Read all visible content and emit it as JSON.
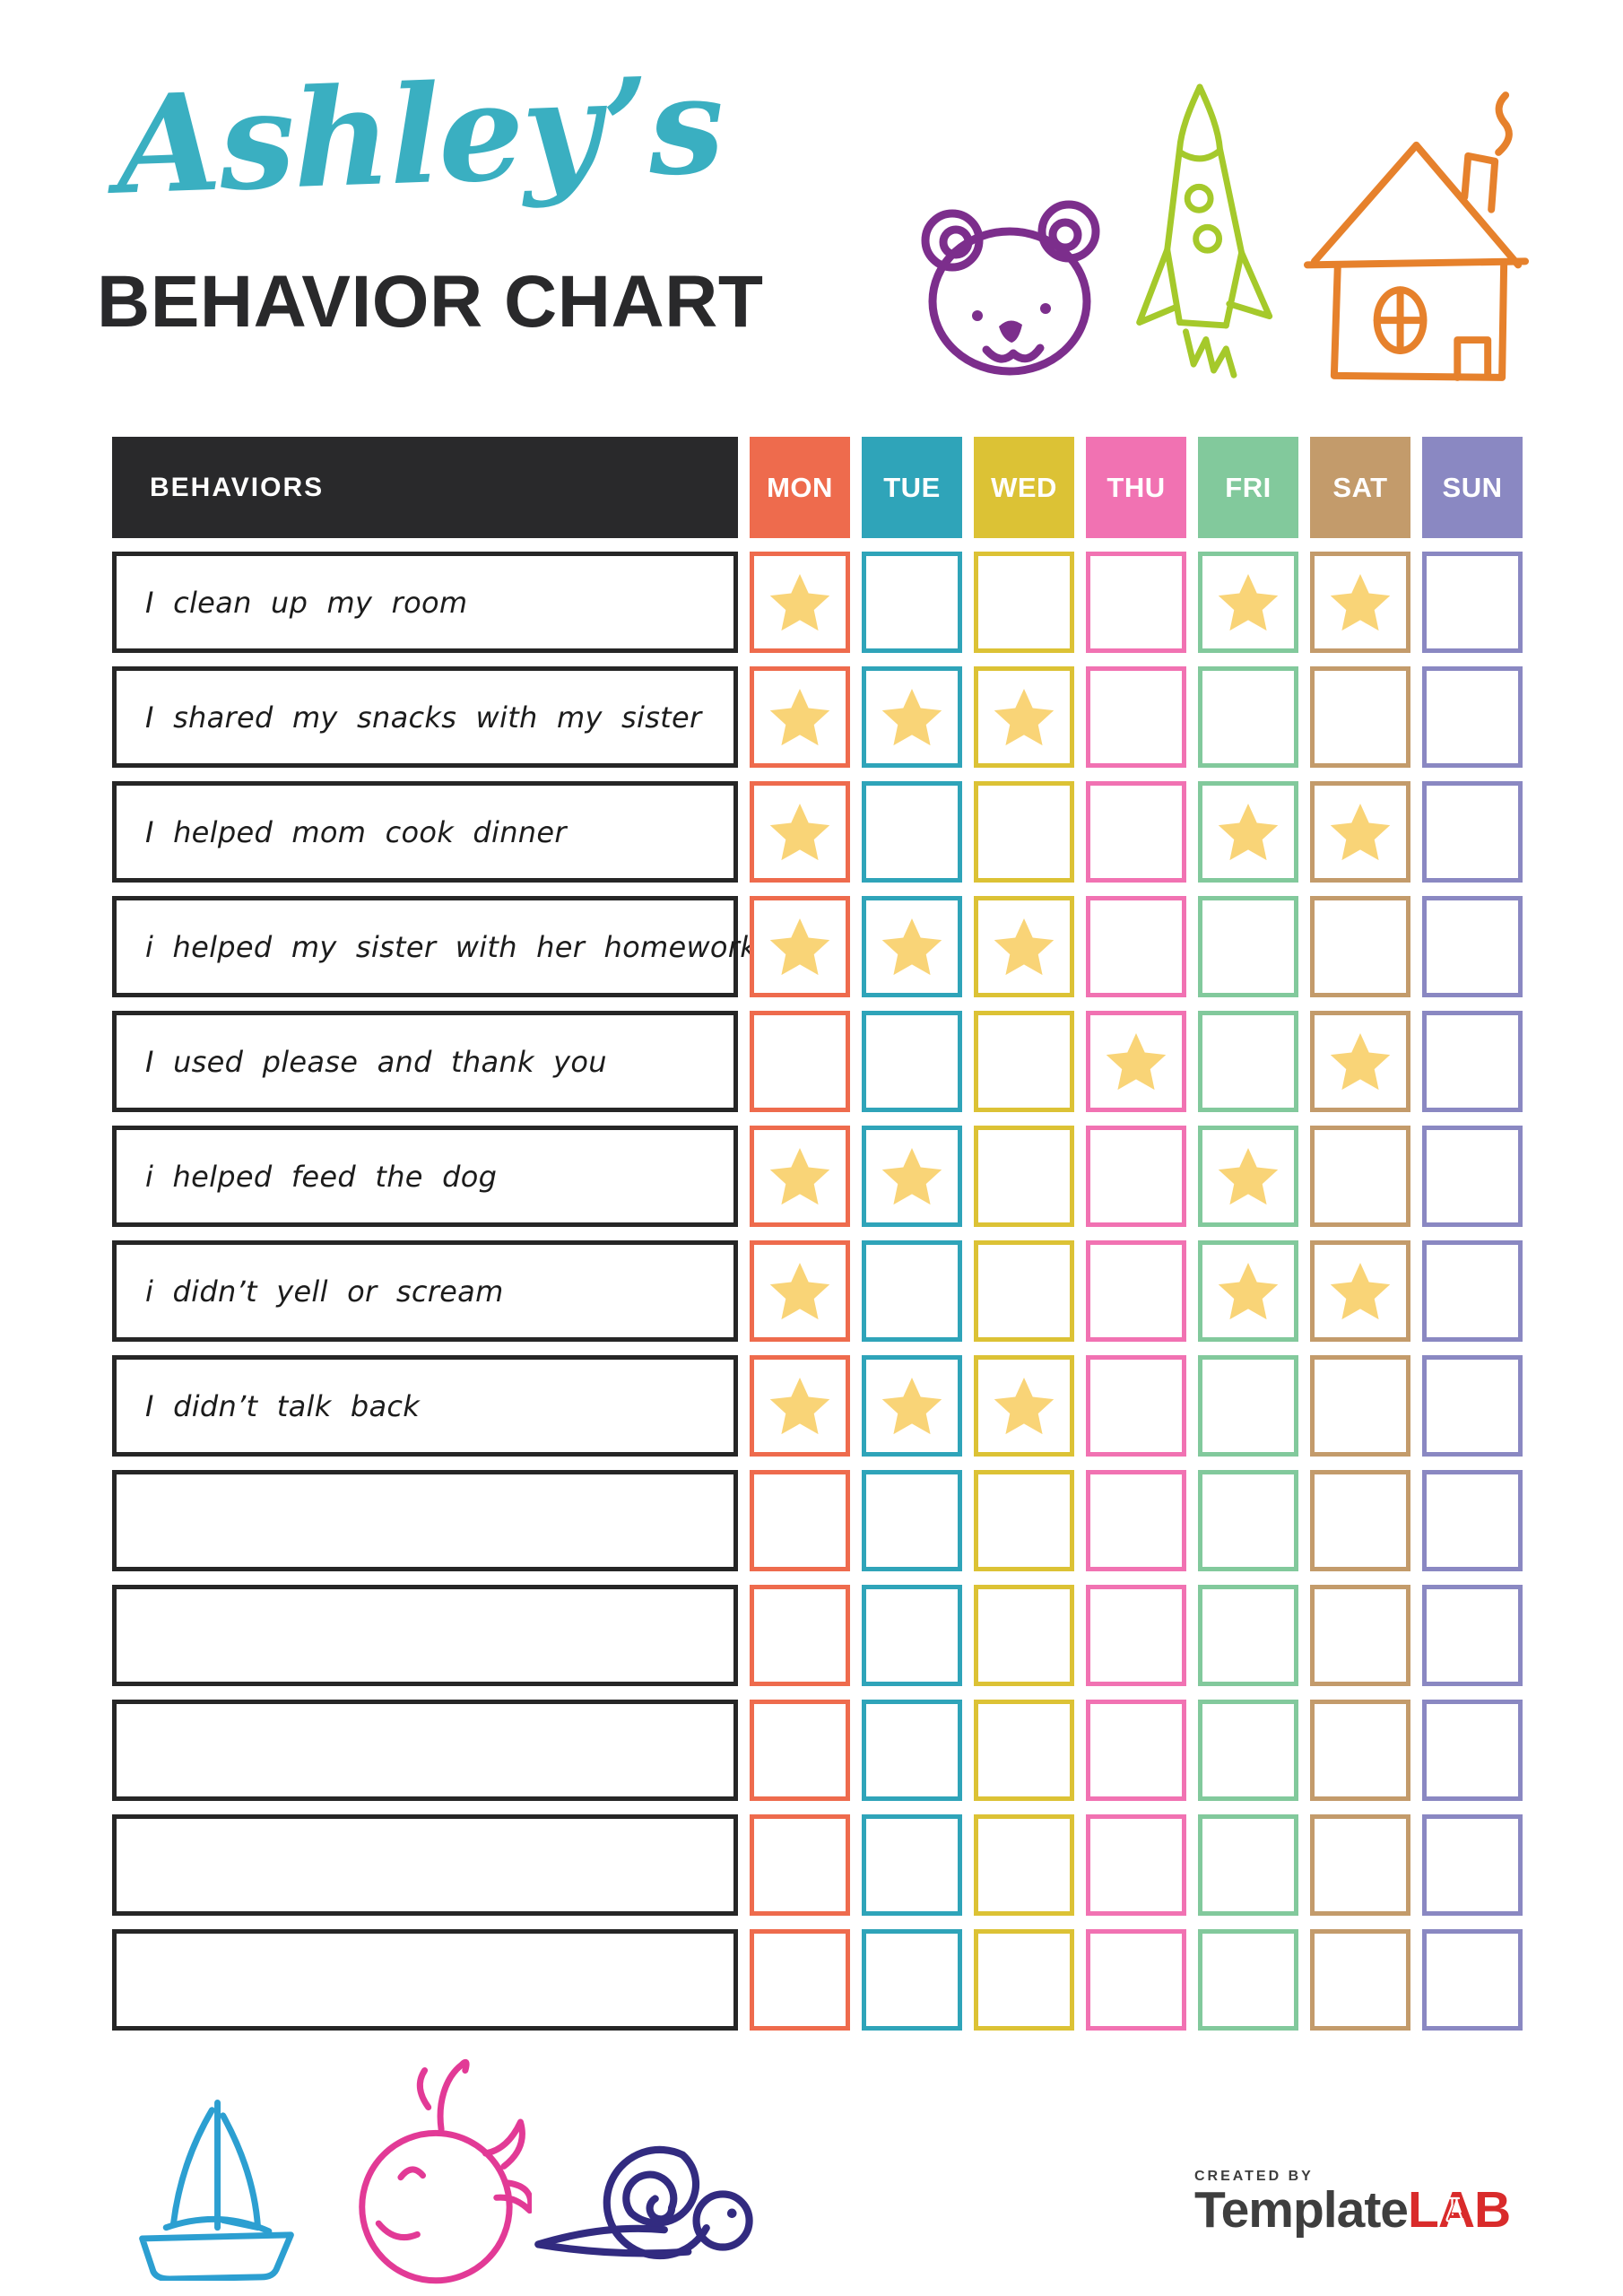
{
  "header": {
    "name": "Ashley’s",
    "title": "BEHAVIOR CHART"
  },
  "table": {
    "header_label": "BEHAVIORS",
    "days": [
      {
        "label": "MON",
        "color": "#EE6B4D"
      },
      {
        "label": "TUE",
        "color": "#2FA4B9"
      },
      {
        "label": "WED",
        "color": "#DCC235"
      },
      {
        "label": "THU",
        "color": "#F172B2"
      },
      {
        "label": "FRI",
        "color": "#82C99C"
      },
      {
        "label": "SAT",
        "color": "#C39B6B"
      },
      {
        "label": "SUN",
        "color": "#8A88C2"
      }
    ],
    "rows": [
      {
        "behavior": "I clean up my room",
        "stars": [
          "MON",
          "FRI",
          "SAT"
        ]
      },
      {
        "behavior": "I shared my snacks with my sister",
        "stars": [
          "MON",
          "TUE",
          "WED"
        ]
      },
      {
        "behavior": "I helped mom cook dinner",
        "stars": [
          "MON",
          "FRI",
          "SAT"
        ]
      },
      {
        "behavior": "i helped my sister with her homework",
        "stars": [
          "MON",
          "TUE",
          "WED"
        ]
      },
      {
        "behavior": "I used please and thank you",
        "stars": [
          "THU",
          "SAT"
        ]
      },
      {
        "behavior": "i helped feed the dog",
        "stars": [
          "MON",
          "TUE",
          "FRI"
        ]
      },
      {
        "behavior": "i didn’t yell or scream",
        "stars": [
          "MON",
          "FRI",
          "SAT"
        ]
      },
      {
        "behavior": "I didn’t talk back",
        "stars": [
          "MON",
          "TUE",
          "WED"
        ]
      },
      {
        "behavior": "",
        "stars": []
      },
      {
        "behavior": "",
        "stars": []
      },
      {
        "behavior": "",
        "stars": []
      },
      {
        "behavior": "",
        "stars": []
      },
      {
        "behavior": "",
        "stars": []
      }
    ]
  },
  "footer": {
    "created_by": "CREATED BY",
    "brand": "Template",
    "brand_accent": "LAB"
  },
  "icons": {
    "top": [
      "bear-icon",
      "rocket-icon",
      "house-icon"
    ],
    "bottom": [
      "sailboat-icon",
      "whale-icon",
      "snail-icon"
    ]
  },
  "colors": {
    "title_script": "#3AAFC1",
    "title_main": "#29292B",
    "behaviors_bg": "#29292B",
    "star": "#F9D477",
    "bear": "#7C2E8C",
    "rocket": "#A5C92B",
    "house": "#E6812C",
    "sailboat": "#2C9FD1",
    "whale": "#E23A96",
    "snail": "#322B80",
    "brand_text": "#3E3E3E",
    "brand_accent": "#D92B2B"
  }
}
